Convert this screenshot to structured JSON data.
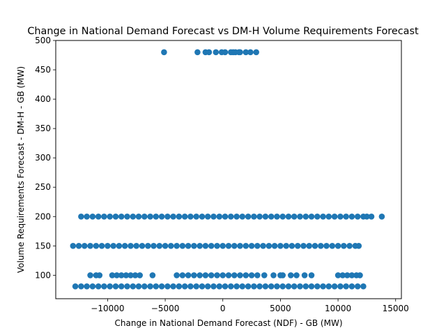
{
  "chart_data": {
    "type": "scatter",
    "title": "Change in National Demand Forecast vs DM-H Volume Requirements Forecast",
    "xlabel": "Change in National Demand Forecast (NDF) - GB (MW)",
    "ylabel": "Volume Requirements Forecast - DM-H - GB (MW)",
    "xlim": [
      -14500,
      15500
    ],
    "ylim": [
      60,
      500
    ],
    "xticks": [
      -10000,
      -5000,
      0,
      5000,
      10000,
      15000
    ],
    "xtick_labels": [
      "−10000",
      "−5000",
      "0",
      "5000",
      "10000",
      "15000"
    ],
    "yticks": [
      100,
      150,
      200,
      250,
      300,
      350,
      400,
      450,
      500
    ],
    "ytick_labels": [
      "100",
      "150",
      "200",
      "250",
      "300",
      "350",
      "400",
      "450",
      "500"
    ],
    "grid": false,
    "marker_color": "#1f77b4",
    "series": [
      {
        "points": [
          [
            -5100,
            480
          ],
          [
            -2200,
            480
          ],
          [
            -1500,
            480
          ],
          [
            -1200,
            480
          ],
          [
            -600,
            480
          ],
          [
            -100,
            480
          ],
          [
            200,
            480
          ],
          [
            700,
            480
          ],
          [
            900,
            480
          ],
          [
            1100,
            480
          ],
          [
            1400,
            480
          ],
          [
            1500,
            480
          ],
          [
            2000,
            480
          ],
          [
            2400,
            480
          ],
          [
            2900,
            480
          ],
          [
            -12300,
            200
          ],
          [
            -11800,
            200
          ],
          [
            -11300,
            200
          ],
          [
            -10800,
            200
          ],
          [
            -10300,
            200
          ],
          [
            -9800,
            200
          ],
          [
            -9300,
            200
          ],
          [
            -8800,
            200
          ],
          [
            -8300,
            200
          ],
          [
            -7800,
            200
          ],
          [
            -7300,
            200
          ],
          [
            -6800,
            200
          ],
          [
            -6300,
            200
          ],
          [
            -5800,
            200
          ],
          [
            -5300,
            200
          ],
          [
            -4800,
            200
          ],
          [
            -4300,
            200
          ],
          [
            -3800,
            200
          ],
          [
            -3300,
            200
          ],
          [
            -2800,
            200
          ],
          [
            -2300,
            200
          ],
          [
            -1800,
            200
          ],
          [
            -1300,
            200
          ],
          [
            -800,
            200
          ],
          [
            -300,
            200
          ],
          [
            200,
            200
          ],
          [
            700,
            200
          ],
          [
            1200,
            200
          ],
          [
            1700,
            200
          ],
          [
            2200,
            200
          ],
          [
            2700,
            200
          ],
          [
            3200,
            200
          ],
          [
            3700,
            200
          ],
          [
            4200,
            200
          ],
          [
            4700,
            200
          ],
          [
            5200,
            200
          ],
          [
            5700,
            200
          ],
          [
            6200,
            200
          ],
          [
            6700,
            200
          ],
          [
            7200,
            200
          ],
          [
            7700,
            200
          ],
          [
            8200,
            200
          ],
          [
            8700,
            200
          ],
          [
            9200,
            200
          ],
          [
            9700,
            200
          ],
          [
            10200,
            200
          ],
          [
            10700,
            200
          ],
          [
            11200,
            200
          ],
          [
            11700,
            200
          ],
          [
            12200,
            200
          ],
          [
            12500,
            200
          ],
          [
            12900,
            200
          ],
          [
            13800,
            200
          ],
          [
            -13000,
            150
          ],
          [
            -12500,
            150
          ],
          [
            -12000,
            150
          ],
          [
            -11500,
            150
          ],
          [
            -11000,
            150
          ],
          [
            -10500,
            150
          ],
          [
            -10000,
            150
          ],
          [
            -9500,
            150
          ],
          [
            -9000,
            150
          ],
          [
            -8500,
            150
          ],
          [
            -8000,
            150
          ],
          [
            -7500,
            150
          ],
          [
            -7000,
            150
          ],
          [
            -6500,
            150
          ],
          [
            -6000,
            150
          ],
          [
            -5500,
            150
          ],
          [
            -5000,
            150
          ],
          [
            -4500,
            150
          ],
          [
            -4000,
            150
          ],
          [
            -3500,
            150
          ],
          [
            -3000,
            150
          ],
          [
            -2500,
            150
          ],
          [
            -2000,
            150
          ],
          [
            -1500,
            150
          ],
          [
            -1000,
            150
          ],
          [
            -500,
            150
          ],
          [
            0,
            150
          ],
          [
            500,
            150
          ],
          [
            1000,
            150
          ],
          [
            1500,
            150
          ],
          [
            2000,
            150
          ],
          [
            2500,
            150
          ],
          [
            3000,
            150
          ],
          [
            3500,
            150
          ],
          [
            4000,
            150
          ],
          [
            4500,
            150
          ],
          [
            5000,
            150
          ],
          [
            5500,
            150
          ],
          [
            6000,
            150
          ],
          [
            6500,
            150
          ],
          [
            7000,
            150
          ],
          [
            7500,
            150
          ],
          [
            8000,
            150
          ],
          [
            8500,
            150
          ],
          [
            9000,
            150
          ],
          [
            9500,
            150
          ],
          [
            10000,
            150
          ],
          [
            10500,
            150
          ],
          [
            11000,
            150
          ],
          [
            11500,
            150
          ],
          [
            11800,
            150
          ],
          [
            -11500,
            100
          ],
          [
            -11000,
            100
          ],
          [
            -10700,
            100
          ],
          [
            -9600,
            100
          ],
          [
            -9200,
            100
          ],
          [
            -8800,
            100
          ],
          [
            -8400,
            100
          ],
          [
            -8000,
            100
          ],
          [
            -7600,
            100
          ],
          [
            -7200,
            100
          ],
          [
            -6100,
            100
          ],
          [
            -4000,
            100
          ],
          [
            -3500,
            100
          ],
          [
            -3000,
            100
          ],
          [
            -2500,
            100
          ],
          [
            -2000,
            100
          ],
          [
            -1500,
            100
          ],
          [
            -1000,
            100
          ],
          [
            -500,
            100
          ],
          [
            0,
            100
          ],
          [
            500,
            100
          ],
          [
            1000,
            100
          ],
          [
            1500,
            100
          ],
          [
            2000,
            100
          ],
          [
            2500,
            100
          ],
          [
            3000,
            100
          ],
          [
            3600,
            100
          ],
          [
            4400,
            100
          ],
          [
            5000,
            100
          ],
          [
            5200,
            100
          ],
          [
            5900,
            100
          ],
          [
            6400,
            100
          ],
          [
            7100,
            100
          ],
          [
            7700,
            100
          ],
          [
            10000,
            100
          ],
          [
            10400,
            100
          ],
          [
            10800,
            100
          ],
          [
            11200,
            100
          ],
          [
            11600,
            100
          ],
          [
            11900,
            100
          ],
          [
            -12800,
            81
          ],
          [
            -12300,
            81
          ],
          [
            -11800,
            81
          ],
          [
            -11300,
            81
          ],
          [
            -10800,
            81
          ],
          [
            -10300,
            81
          ],
          [
            -9800,
            81
          ],
          [
            -9300,
            81
          ],
          [
            -8800,
            81
          ],
          [
            -8300,
            81
          ],
          [
            -7800,
            81
          ],
          [
            -7300,
            81
          ],
          [
            -6800,
            81
          ],
          [
            -6300,
            81
          ],
          [
            -5800,
            81
          ],
          [
            -5300,
            81
          ],
          [
            -4800,
            81
          ],
          [
            -4300,
            81
          ],
          [
            -3800,
            81
          ],
          [
            -3300,
            81
          ],
          [
            -2800,
            81
          ],
          [
            -2300,
            81
          ],
          [
            -1800,
            81
          ],
          [
            -1300,
            81
          ],
          [
            -800,
            81
          ],
          [
            -300,
            81
          ],
          [
            200,
            81
          ],
          [
            700,
            81
          ],
          [
            1200,
            81
          ],
          [
            1700,
            81
          ],
          [
            2200,
            81
          ],
          [
            2700,
            81
          ],
          [
            3200,
            81
          ],
          [
            3700,
            81
          ],
          [
            4200,
            81
          ],
          [
            4700,
            81
          ],
          [
            5200,
            81
          ],
          [
            5700,
            81
          ],
          [
            6200,
            81
          ],
          [
            6700,
            81
          ],
          [
            7200,
            81
          ],
          [
            7700,
            81
          ],
          [
            8200,
            81
          ],
          [
            8700,
            81
          ],
          [
            9200,
            81
          ],
          [
            9700,
            81
          ],
          [
            10200,
            81
          ],
          [
            10700,
            81
          ],
          [
            11200,
            81
          ],
          [
            11700,
            81
          ],
          [
            12200,
            81
          ]
        ]
      }
    ]
  }
}
